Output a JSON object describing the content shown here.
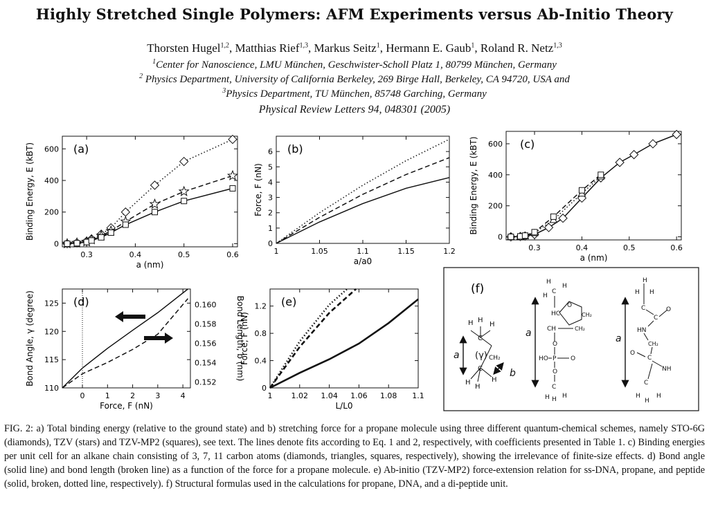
{
  "title": "Highly Stretched Single Polymers: AFM Experiments versus Ab-Initio Theory",
  "authors": [
    {
      "name": "Thorsten Hugel",
      "aff": "1,2"
    },
    {
      "name": "Matthias Rief",
      "aff": "1,3"
    },
    {
      "name": "Markus Seitz",
      "aff": "1"
    },
    {
      "name": "Hermann E. Gaub",
      "aff": "1"
    },
    {
      "name": "Roland R. Netz",
      "aff": "1,3"
    }
  ],
  "affiliations": [
    {
      "num": "1",
      "text": "Center for Nanoscience, LMU München, Geschwister-Scholl Platz 1, 80799 München, Germany"
    },
    {
      "num": "2",
      "text": "Physics Department, University of California Berkeley, 269 Birge Hall, Berkeley, CA 94720, USA and"
    },
    {
      "num": "3",
      "text": "Physics Department, TU München, 85748 Garching, Germany"
    }
  ],
  "journal": "Physical Review Letters 94, 048301 (2005)",
  "panels": {
    "a": {
      "label": "(a)",
      "xlabel": "a (nm)",
      "ylabel": "Binding Energy, E (kBT)",
      "xticks": [
        "0.3",
        "0.4",
        "0.5",
        "0.6"
      ],
      "yticks": [
        "0",
        "200",
        "400",
        "600"
      ]
    },
    "b": {
      "label": "(b)",
      "xlabel": "a/a0",
      "ylabel": "Force, F (nN)",
      "xticks": [
        "1",
        "1.05",
        "1.1",
        "1.15",
        "1.2"
      ],
      "yticks": [
        "0",
        "1",
        "2",
        "3",
        "4",
        "5",
        "6"
      ]
    },
    "c": {
      "label": "(c)",
      "xlabel": "a (nm)",
      "ylabel": "Binding Energy, E (kBT)",
      "xticks": [
        "0.3",
        "0.4",
        "0.5",
        "0.6"
      ],
      "yticks": [
        "0",
        "200",
        "400",
        "600"
      ]
    },
    "d": {
      "label": "(d)",
      "xlabel": "Force, F (nN)",
      "ylabel": "Bond Angle, γ (degree)",
      "y2label": "Bond Length, b (nm)",
      "xticks": [
        "0",
        "1",
        "2",
        "3",
        "4"
      ],
      "yticks": [
        "110",
        "115",
        "120",
        "125"
      ],
      "y2ticks": [
        "0.152",
        "0.154",
        "0.156",
        "0.158",
        "0.160"
      ]
    },
    "e": {
      "label": "(e)",
      "xlabel": "L/L0",
      "ylabel": "Force, F (nN)",
      "xticks": [
        "1",
        "1.02",
        "1.04",
        "1.06",
        "1.08",
        "1.1"
      ],
      "yticks": [
        "0",
        "0.4",
        "0.8",
        "1.2"
      ]
    },
    "f": {
      "label": "(f)",
      "a_label": "a",
      "gamma_label": "(γ)",
      "b_label": "b"
    }
  },
  "chart_data": [
    {
      "panel": "a",
      "type": "line",
      "xlim": [
        0.25,
        0.61
      ],
      "ylim": [
        -20,
        680
      ],
      "series": [
        {
          "x": [
            0.26,
            0.28,
            0.3,
            0.31,
            0.33,
            0.35,
            0.38,
            0.44,
            0.5,
            0.6
          ],
          "y": [
            0,
            5,
            15,
            30,
            60,
            100,
            200,
            370,
            520,
            660
          ],
          "marker": "diamond",
          "line": "dotted"
        },
        {
          "x": [
            0.26,
            0.28,
            0.3,
            0.31,
            0.33,
            0.35,
            0.38,
            0.44,
            0.5,
            0.6
          ],
          "y": [
            0,
            5,
            12,
            25,
            50,
            80,
            140,
            250,
            330,
            430
          ],
          "marker": "star",
          "line": "dashed"
        },
        {
          "x": [
            0.26,
            0.28,
            0.3,
            0.31,
            0.33,
            0.35,
            0.38,
            0.44,
            0.5,
            0.6
          ],
          "y": [
            0,
            3,
            10,
            20,
            40,
            70,
            120,
            200,
            270,
            350
          ],
          "marker": "square",
          "line": "solid"
        }
      ]
    },
    {
      "panel": "b",
      "type": "line",
      "xlim": [
        1,
        1.2
      ],
      "ylim": [
        0,
        7
      ],
      "series": [
        {
          "x": [
            1,
            1.05,
            1.1,
            1.15,
            1.2
          ],
          "y": [
            0,
            2.0,
            3.8,
            5.4,
            6.8
          ],
          "line": "dotted"
        },
        {
          "x": [
            1,
            1.05,
            1.1,
            1.15,
            1.2
          ],
          "y": [
            0,
            1.7,
            3.2,
            4.5,
            5.6
          ],
          "line": "dashed"
        },
        {
          "x": [
            1,
            1.05,
            1.1,
            1.15,
            1.2
          ],
          "y": [
            0,
            1.4,
            2.6,
            3.6,
            4.3
          ],
          "line": "solid"
        }
      ]
    },
    {
      "panel": "c",
      "type": "line",
      "xlim": [
        0.24,
        0.61
      ],
      "ylim": [
        -20,
        680
      ],
      "series": [
        {
          "x": [
            0.25,
            0.27,
            0.28,
            0.3,
            0.33,
            0.36,
            0.4,
            0.44,
            0.48,
            0.51,
            0.55,
            0.6
          ],
          "y": [
            0,
            2,
            5,
            15,
            60,
            120,
            250,
            380,
            480,
            530,
            600,
            660
          ],
          "marker": "diamond",
          "line": "solid"
        },
        {
          "x": [
            0.25,
            0.27,
            0.28,
            0.3,
            0.34,
            0.4,
            0.44
          ],
          "y": [
            0,
            2,
            5,
            25,
            110,
            280,
            390
          ],
          "marker": "triangle",
          "line": "dotted"
        },
        {
          "x": [
            0.25,
            0.27,
            0.28,
            0.3,
            0.34,
            0.4,
            0.44
          ],
          "y": [
            0,
            3,
            8,
            30,
            130,
            300,
            400
          ],
          "marker": "square",
          "line": "dashed"
        }
      ]
    },
    {
      "panel": "d",
      "type": "line",
      "xlim": [
        -0.8,
        4.3
      ],
      "ylim": [
        110,
        127.5
      ],
      "series": [
        {
          "x": [
            -0.8,
            0,
            1,
            2,
            3,
            4.2
          ],
          "y": [
            110,
            113.5,
            117.0,
            120.2,
            123.3,
            127.5
          ],
          "line": "solid"
        },
        {
          "x": [
            -0.8,
            0,
            1,
            2,
            3,
            4.2
          ],
          "y": [
            110,
            112.5,
            114.5,
            116.8,
            119.5,
            125.8
          ],
          "line": "dashed"
        }
      ]
    },
    {
      "panel": "e",
      "type": "line",
      "xlim": [
        1,
        1.1
      ],
      "ylim": [
        0,
        1.45
      ],
      "series": [
        {
          "x": [
            1,
            1.02,
            1.04,
            1.06,
            1.08,
            1.1
          ],
          "y": [
            0,
            0.22,
            0.42,
            0.65,
            0.95,
            1.3
          ],
          "line": "solid"
        },
        {
          "x": [
            1,
            1.02,
            1.04,
            1.058
          ],
          "y": [
            0,
            0.6,
            1.1,
            1.45
          ],
          "line": "dashed"
        },
        {
          "x": [
            1,
            1.02,
            1.04,
            1.052
          ],
          "y": [
            0,
            0.68,
            1.22,
            1.45
          ],
          "line": "dotted"
        }
      ]
    }
  ],
  "caption": "FIG. 2: a) Total binding energy (relative to the ground state) and b) stretching force for a propane molecule using three different quantum-chemical schemes, namely STO-6G (diamonds), TZV (stars) and TZV-MP2 (squares), see text. The lines denote fits according to Eq. 1 and 2, respectively, with coefficients presented in Table 1. c) Binding energies per unit cell for an alkane chain consisting of 3, 7, 11 carbon atoms (diamonds, triangles, squares, respectively), showing the irrelevance of finite-size effects. d) Bond angle (solid line) and bond length (broken line) as a function of the force for a propane molecule. e) Ab-initio (TZV-MP2) force-extension relation for ss-DNA, propane, and peptide (solid, broken, dotted line, respectively). f) Structural formulas used in the calculations for propane, DNA, and a di-peptide unit."
}
